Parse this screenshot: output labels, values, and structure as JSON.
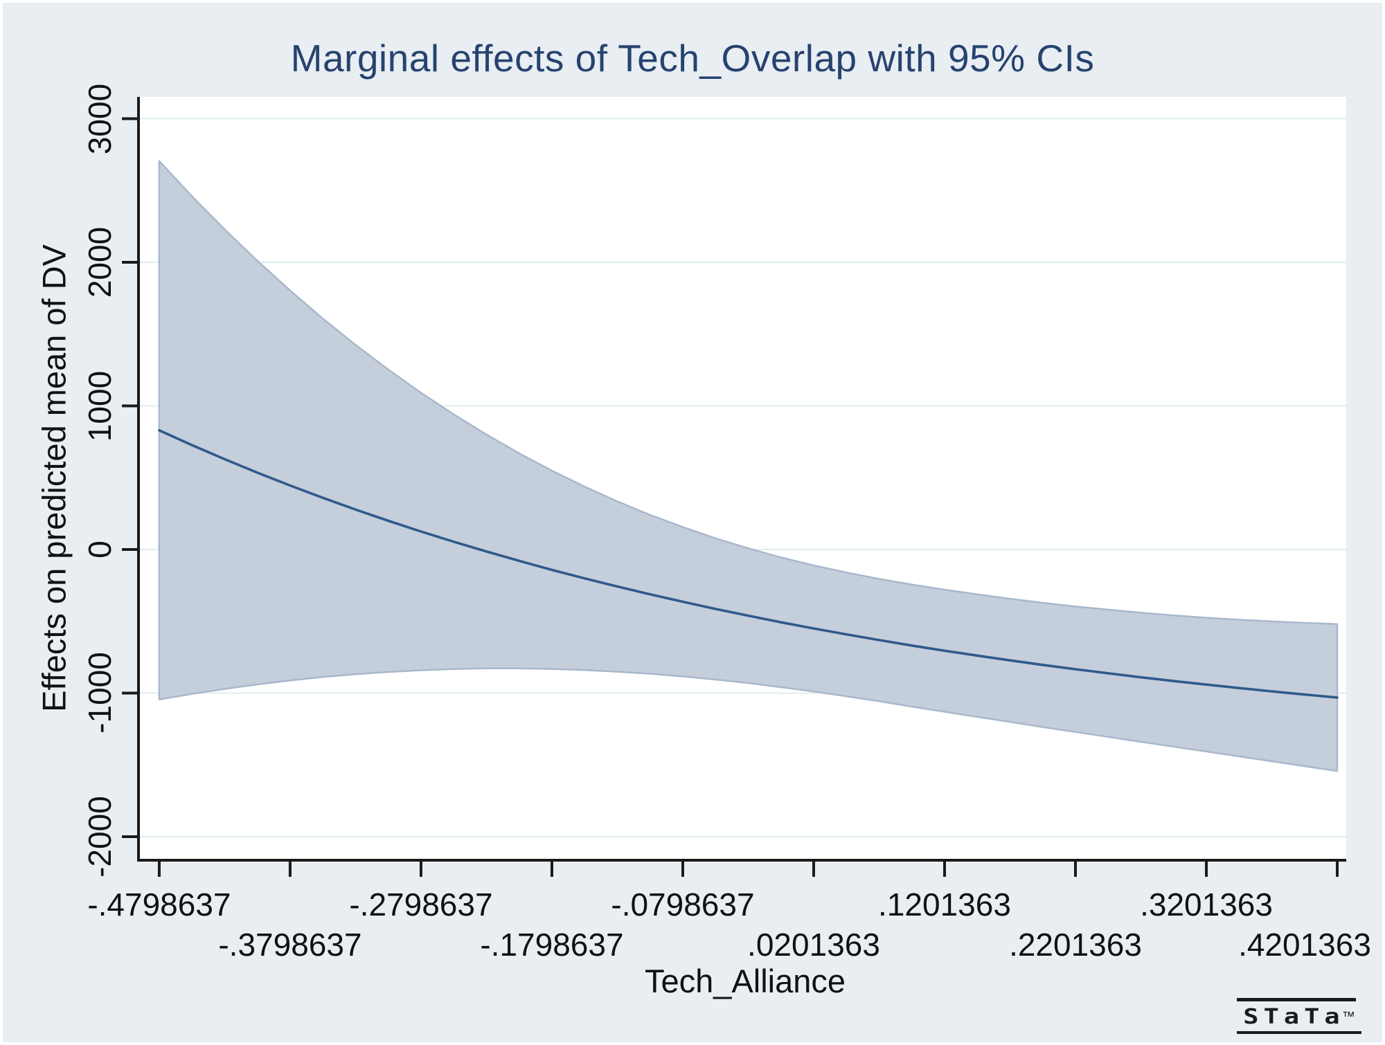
{
  "branding": {
    "logo_text": "STaTa",
    "trademark": "™"
  },
  "chart_data": {
    "type": "area",
    "subtype": "marginal-effects-line-with-confidence-band",
    "title": "Marginal effects of Tech_Overlap with 95% CIs",
    "xlabel": "Tech_Alliance",
    "ylabel": "Effects on predicted mean of DV",
    "ci_level": "95%",
    "grid": "horizontal",
    "legend_position": "none",
    "xlim": [
      -0.4957,
      0.427
    ],
    "ylim": [
      -2164,
      3152
    ],
    "y_ticks": [
      3000,
      2000,
      1000,
      0,
      -1000,
      -2000
    ],
    "y_tick_labels": [
      "3000",
      "2000",
      "1000",
      "0",
      "-1000",
      "-2000"
    ],
    "x_ticks": [
      -0.4798637,
      -0.3798637,
      -0.2798637,
      -0.1798637,
      -0.0798637,
      0.0201363,
      0.1201363,
      0.2201363,
      0.3201363,
      0.4201363
    ],
    "x_tick_labels": [
      "-.4798637",
      "-.3798637",
      "-.2798637",
      "-.1798637",
      "-.0798637",
      ".0201363",
      ".1201363",
      ".2201363",
      ".3201363",
      ".4201363"
    ],
    "x_tick_label_rows": [
      1,
      2,
      1,
      2,
      1,
      2,
      1,
      2,
      1,
      2
    ],
    "x": [
      -0.4798637,
      -0.4548637,
      -0.4298637,
      -0.4048637,
      -0.3798637,
      -0.3548637,
      -0.3298637,
      -0.3048637,
      -0.2798637,
      -0.2548637,
      -0.2298637,
      -0.2048637,
      -0.1798637,
      -0.1548637,
      -0.1298637,
      -0.1048637,
      -0.0798637,
      -0.0548637,
      -0.0298637,
      -0.0048637,
      0.0201363,
      0.0451363,
      0.0701363,
      0.0951363,
      0.1201363,
      0.1451363,
      0.1701363,
      0.1951363,
      0.2201363,
      0.2451363,
      0.2701363,
      0.2951363,
      0.3201363,
      0.3451363,
      0.3701363,
      0.3951363,
      0.4201363
    ],
    "series": [
      {
        "name": "marginal_effect",
        "values": [
          830,
          727,
          629,
          535,
          446,
          360,
          278,
          200,
          125,
          54,
          -14,
          -79,
          -142,
          -201,
          -258,
          -312,
          -364,
          -414,
          -461,
          -507,
          -550,
          -591,
          -631,
          -669,
          -705,
          -739,
          -772,
          -804,
          -834,
          -862,
          -890,
          -916,
          -941,
          -965,
          -988,
          -1010,
          -1031
        ]
      },
      {
        "name": "upper_95ci",
        "values": [
          2705,
          2460,
          2229,
          2010,
          1804,
          1608,
          1425,
          1253,
          1091,
          941,
          800,
          670,
          549,
          438,
          335,
          241,
          156,
          78,
          8,
          -55,
          -111,
          -160,
          -205,
          -244,
          -280,
          -312,
          -343,
          -371,
          -397,
          -419,
          -440,
          -459,
          -475,
          -489,
          -501,
          -511,
          -519
        ]
      },
      {
        "name": "lower_95ci",
        "values": [
          -1045,
          -1006,
          -971,
          -940,
          -912,
          -888,
          -869,
          -853,
          -841,
          -833,
          -828,
          -828,
          -833,
          -840,
          -851,
          -865,
          -884,
          -906,
          -930,
          -959,
          -989,
          -1022,
          -1057,
          -1094,
          -1130,
          -1166,
          -1201,
          -1237,
          -1271,
          -1305,
          -1340,
          -1373,
          -1407,
          -1441,
          -1475,
          -1509,
          -1543
        ]
      }
    ],
    "colors": {
      "canvas_bg": "#e8eef2",
      "plot_bg": "#ffffff",
      "grid": "#dfecf1",
      "band_fill": "#c5cedb",
      "band_edge": "#a8b8cc",
      "line": "#2f5a8c",
      "axis": "#1a1a1a",
      "title": "#27426f",
      "tick_text": "#111111"
    }
  }
}
